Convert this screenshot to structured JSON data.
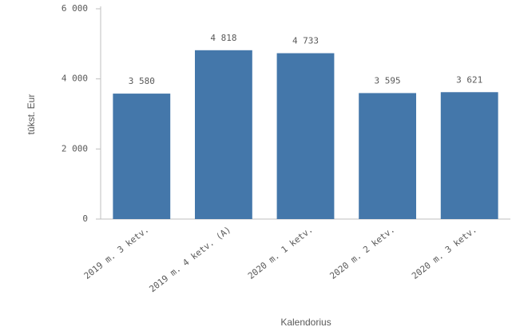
{
  "chart_data": {
    "type": "bar",
    "categories": [
      "2019 m. 3 ketv.",
      "2019 m. 4 ketv. (A)",
      "2020 m. 1 ketv.",
      "2020 m. 2 ketv.",
      "2020 m. 3 ketv."
    ],
    "values": [
      3580,
      4818,
      4733,
      3595,
      3621
    ],
    "value_labels": [
      "3 580",
      "4 818",
      "4 733",
      "3 595",
      "3 621"
    ],
    "color": "#4477aa",
    "ylim": [
      0,
      6000
    ],
    "yticks": [
      0,
      {
        "value": 2000,
        "label": "2 000"
      },
      {
        "value": 4000,
        "label": "4 000"
      },
      {
        "value": 6000,
        "label": "6 000"
      }
    ],
    "ylabel": "tūkst. Eur",
    "xlabel": "Kalendorius",
    "grid": false
  }
}
